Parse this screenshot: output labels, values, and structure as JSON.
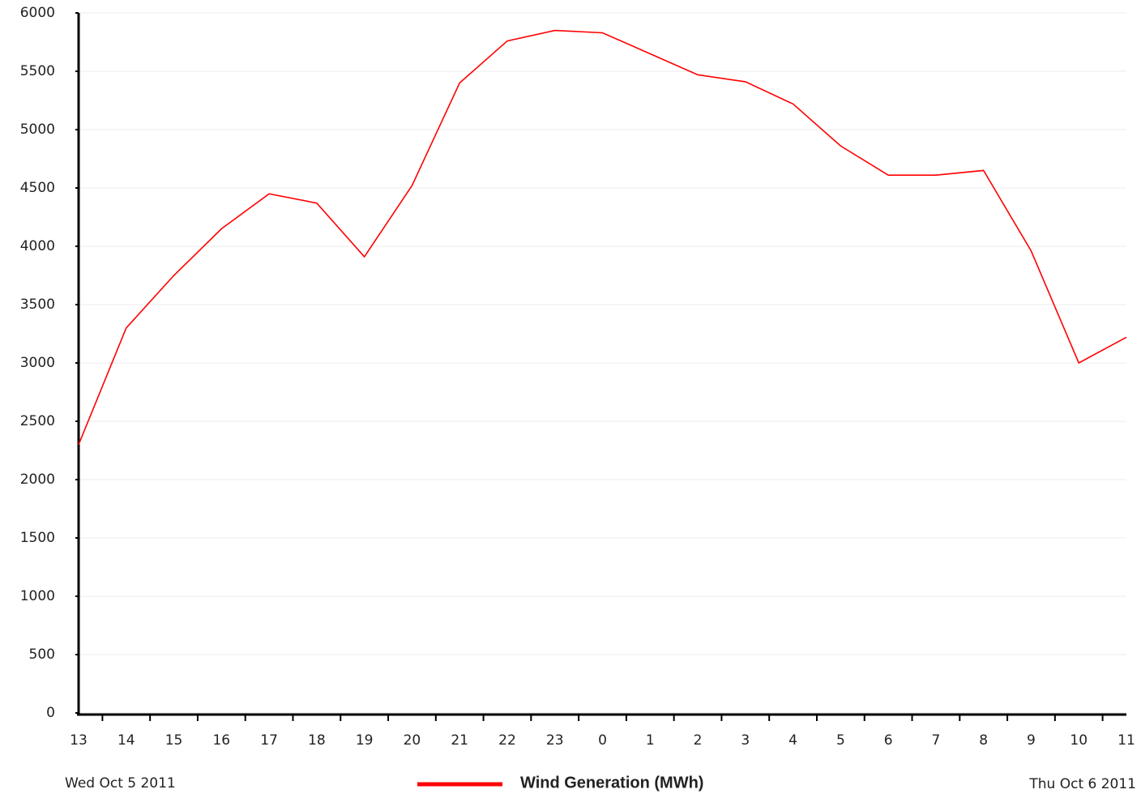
{
  "chart_data": {
    "type": "line",
    "categories": [
      "13",
      "14",
      "15",
      "16",
      "17",
      "18",
      "19",
      "20",
      "21",
      "22",
      "23",
      "0",
      "1",
      "2",
      "3",
      "4",
      "5",
      "6",
      "7",
      "8",
      "9",
      "10",
      "11"
    ],
    "series": [
      {
        "name": "Wind Generation (MWh)",
        "color": "#ff0000",
        "values": [
          2300,
          3300,
          3750,
          4150,
          4450,
          4370,
          3910,
          4520,
          5400,
          5760,
          5850,
          5830,
          5650,
          5470,
          5410,
          5220,
          4860,
          4610,
          4610,
          4650,
          3960,
          3000,
          3220
        ]
      }
    ],
    "ylim": [
      0,
      6000
    ],
    "yticks": [
      0,
      500,
      1000,
      1500,
      2000,
      2500,
      3000,
      3500,
      4000,
      4500,
      5000,
      5500,
      6000
    ],
    "grid": true,
    "x_start_label": "Wed Oct 5 2011",
    "x_end_label": "Thu Oct 6 2011"
  }
}
